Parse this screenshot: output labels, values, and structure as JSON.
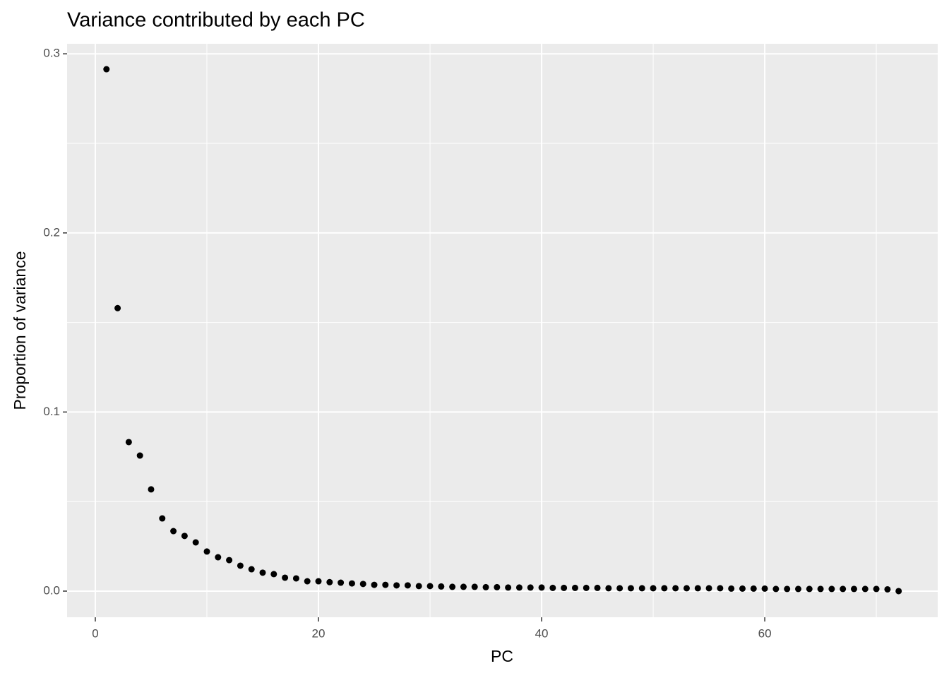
{
  "chart_data": {
    "type": "scatter",
    "title": "Variance contributed by each PC",
    "x_label": "PC",
    "y_label": "Proportion of variance",
    "x": [
      1,
      2,
      3,
      4,
      5,
      6,
      7,
      8,
      9,
      10,
      11,
      12,
      13,
      14,
      15,
      16,
      17,
      18,
      19,
      20,
      21,
      22,
      23,
      24,
      25,
      26,
      27,
      28,
      29,
      30,
      31,
      32,
      33,
      34,
      35,
      36,
      37,
      38,
      39,
      40,
      41,
      42,
      43,
      44,
      45,
      46,
      47,
      48,
      49,
      50,
      51,
      52,
      53,
      54,
      55,
      56,
      57,
      58,
      59,
      60,
      61,
      62,
      63,
      64,
      65,
      66,
      67,
      68,
      69,
      70,
      71,
      72
    ],
    "values": [
      0.2914,
      0.158,
      0.0832,
      0.0757,
      0.0568,
      0.0406,
      0.0335,
      0.0308,
      0.0272,
      0.0221,
      0.0189,
      0.0173,
      0.0142,
      0.0122,
      0.0103,
      0.0095,
      0.0075,
      0.0071,
      0.0055,
      0.0055,
      0.005,
      0.0047,
      0.0043,
      0.004,
      0.0035,
      0.0035,
      0.0032,
      0.0032,
      0.0028,
      0.0028,
      0.0026,
      0.0024,
      0.0024,
      0.0024,
      0.0022,
      0.0022,
      0.002,
      0.002,
      0.002,
      0.002,
      0.0018,
      0.0018,
      0.0018,
      0.0018,
      0.0018,
      0.0016,
      0.0016,
      0.0016,
      0.0016,
      0.0016,
      0.0016,
      0.0016,
      0.0016,
      0.0016,
      0.0016,
      0.0016,
      0.0014,
      0.0014,
      0.0014,
      0.0014,
      0.0012,
      0.0012,
      0.0012,
      0.0012,
      0.0012,
      0.0012,
      0.0012,
      0.0012,
      0.0012,
      0.0012,
      0.001,
      0
    ],
    "color": "#000000",
    "xlim": [
      -2.53,
      75.5
    ],
    "ylim": [
      -0.0146,
      0.3056
    ],
    "xticks": [
      0,
      20,
      40,
      60
    ],
    "yticks": [
      {
        "value": 0,
        "label": "0.0"
      },
      0.1,
      0.2,
      0.3
    ],
    "minor_xticks": [
      10,
      30,
      50,
      70
    ],
    "minor_yticks": [
      0.05,
      0.15,
      0.25
    ],
    "grid": true
  }
}
